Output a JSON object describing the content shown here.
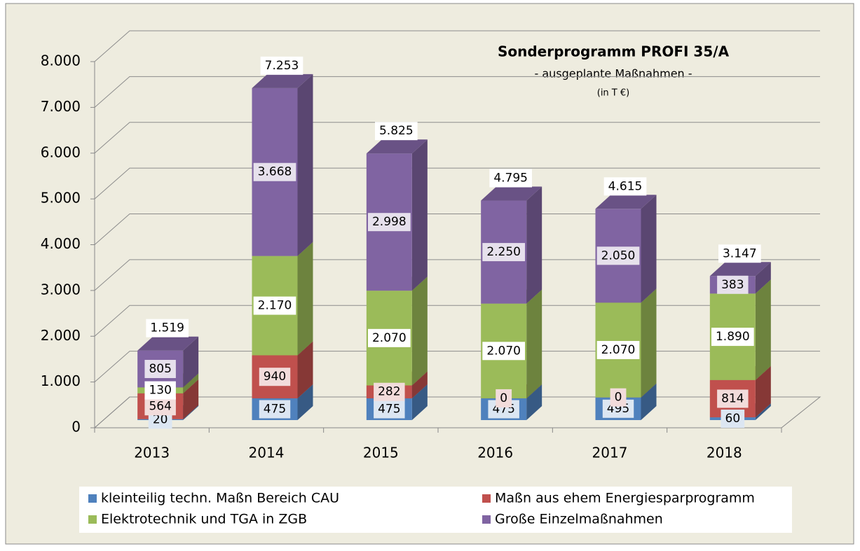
{
  "chart_data": {
    "type": "bar3d_stacked",
    "title": "Sonderprogramm PROFI 35/A",
    "subtitle": "- ausgeplante Maßnahmen -",
    "unit_note": "(in T €)",
    "categories": [
      "2013",
      "2014",
      "2015",
      "2016",
      "2017",
      "2018"
    ],
    "series": [
      {
        "name": "kleinteilig techn. Maßn Bereich CAU",
        "color": "#4f81bd",
        "values": [
          20,
          475,
          475,
          475,
          495,
          60
        ],
        "value_labels": [
          "20",
          "475",
          "475",
          "475",
          "495",
          "60"
        ]
      },
      {
        "name": "Maßn aus ehem Energiesparprogramm",
        "color": "#c0504d",
        "values": [
          564,
          940,
          282,
          0,
          0,
          814
        ],
        "value_labels": [
          "564",
          "940",
          "282",
          "0",
          "0",
          "814"
        ]
      },
      {
        "name": "Elektrotechnik und TGA in ZGB",
        "color": "#9bbb59",
        "values": [
          130,
          2170,
          2070,
          2070,
          2070,
          1890
        ],
        "value_labels": [
          "130",
          "2.170",
          "2.070",
          "2.070",
          "2.070",
          "1.890"
        ]
      },
      {
        "name": "Große Einzelmaßnahmen",
        "color": "#8064a2",
        "values": [
          805,
          3668,
          2998,
          2250,
          2050,
          383
        ],
        "value_labels": [
          "805",
          "3.668",
          "2.998",
          "2.250",
          "2.050",
          "383"
        ]
      }
    ],
    "totals": {
      "values": [
        1519,
        7253,
        5825,
        4795,
        4615,
        3147
      ],
      "value_labels": [
        "1.519",
        "7.253",
        "5.825",
        "4.795",
        "4.615",
        "3.147"
      ]
    },
    "ylim": [
      0,
      8000
    ],
    "yticks": [
      0,
      {
        "value": 1000,
        "label": "1.000"
      },
      {
        "value": 2000,
        "label": "2.000"
      },
      {
        "value": 3000,
        "label": "3.000"
      },
      {
        "value": 4000,
        "label": "4.000"
      },
      {
        "value": 5000,
        "label": "5.000"
      },
      {
        "value": 6000,
        "label": "6.000"
      },
      {
        "value": 7000,
        "label": "7.000"
      },
      {
        "value": 8000,
        "label": "8.000"
      }
    ],
    "grid": true
  }
}
